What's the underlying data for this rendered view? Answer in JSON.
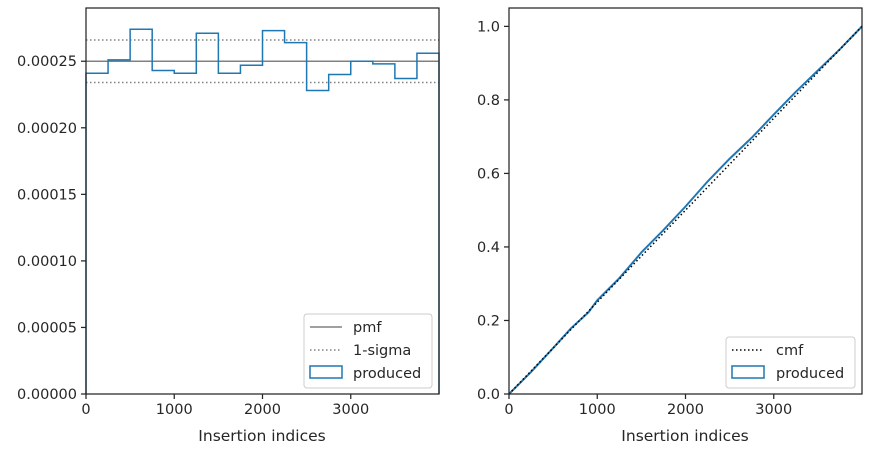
{
  "chart_data": [
    {
      "type": "histogram",
      "xlabel": "Insertion indices",
      "ylabel": "",
      "xlim": [
        0,
        4000
      ],
      "ylim": [
        0,
        0.00029
      ],
      "xticks": [
        0,
        1000,
        2000,
        3000
      ],
      "xtick_labels": [
        "0",
        "1000",
        "2000",
        "3000"
      ],
      "yticks": [
        0,
        5e-05,
        0.0001,
        0.00015,
        0.0002,
        0.00025
      ],
      "ytick_labels": [
        "0.00000",
        "0.00005",
        "0.00010",
        "0.00015",
        "0.00020",
        "0.00025"
      ],
      "bin_edges": [
        0,
        250,
        500,
        750,
        1000,
        1250,
        1500,
        1750,
        2000,
        2250,
        2500,
        2750,
        3000,
        3250,
        3500,
        3750,
        4000
      ],
      "series": [
        {
          "name": "produced",
          "values": [
            0.000241,
            0.000251,
            0.000274,
            0.000243,
            0.000241,
            0.000271,
            0.000241,
            0.000247,
            0.000273,
            0.000264,
            0.000228,
            0.00024,
            0.00025,
            0.000248,
            0.000237,
            0.000256
          ],
          "color": "#1f77b4"
        }
      ],
      "pmf": {
        "name": "pmf",
        "value": 0.00025,
        "color": "#808080"
      },
      "sigma": {
        "name": "1-sigma",
        "values": [
          0.000234,
          0.000266
        ],
        "color": "#808080"
      },
      "legend": {
        "location": "lower right",
        "entries": [
          "pmf",
          "1-sigma",
          "produced"
        ]
      }
    },
    {
      "type": "line",
      "xlabel": "Insertion indices",
      "ylabel": "",
      "xlim": [
        0,
        4000
      ],
      "ylim": [
        0,
        1.05
      ],
      "xticks": [
        0,
        1000,
        2000,
        3000
      ],
      "xtick_labels": [
        "0",
        "1000",
        "2000",
        "3000"
      ],
      "yticks": [
        0,
        0.2,
        0.4,
        0.6,
        0.8,
        1.0
      ],
      "ytick_labels": [
        "0.0",
        "0.2",
        "0.4",
        "0.6",
        "0.8",
        "1.0"
      ],
      "series": [
        {
          "name": "cmf",
          "x": [
            0,
            4000
          ],
          "y": [
            0,
            1.0
          ],
          "color": "#000000",
          "style": "dotted"
        },
        {
          "name": "produced",
          "x": [
            0,
            250,
            500,
            700,
            900,
            1000,
            1250,
            1500,
            1750,
            2000,
            2250,
            2500,
            2750,
            3000,
            3250,
            3500,
            3750,
            4000
          ],
          "y": [
            0,
            0.06,
            0.125,
            0.178,
            0.222,
            0.255,
            0.315,
            0.385,
            0.446,
            0.51,
            0.578,
            0.64,
            0.697,
            0.76,
            0.822,
            0.88,
            0.938,
            1.0
          ],
          "color": "#1f77b4"
        }
      ],
      "legend": {
        "location": "lower right",
        "entries": [
          "cmf",
          "produced"
        ]
      }
    }
  ]
}
